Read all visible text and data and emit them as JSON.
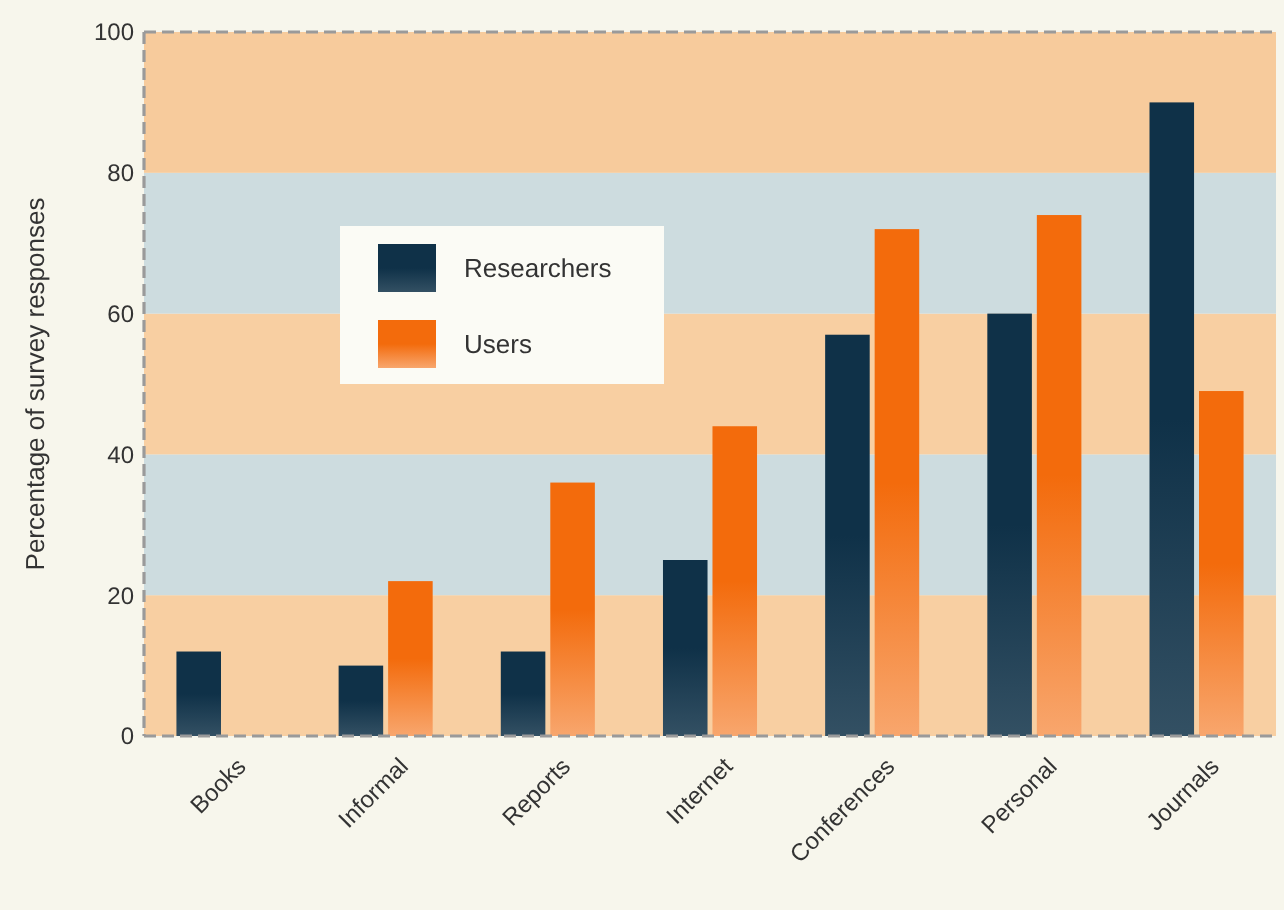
{
  "chart_data": {
    "type": "bar",
    "ylabel": "Percentage of survey responses",
    "categories": [
      "Books",
      "Informal",
      "Reports",
      "Internet",
      "Conferences",
      "Personal",
      "Journals"
    ],
    "series": [
      {
        "name": "Researchers",
        "color": "#0f3148",
        "values": [
          12,
          10,
          12,
          25,
          57,
          60,
          90
        ]
      },
      {
        "name": "Users",
        "color": "#f36b0c",
        "values": [
          null,
          22,
          36,
          44,
          72,
          74,
          49
        ]
      }
    ],
    "ylim": [
      0,
      100
    ],
    "yticks": [
      0,
      20,
      40,
      60,
      80,
      100
    ],
    "bands": [
      {
        "axis": "y",
        "from": 0,
        "to": 20,
        "color": "#f8cfa2"
      },
      {
        "axis": "y",
        "from": 20,
        "to": 40,
        "color": "#cddcdf"
      },
      {
        "axis": "y",
        "from": 40,
        "to": 60,
        "color": "#f8cfa2"
      },
      {
        "axis": "y",
        "from": 60,
        "to": 80,
        "color": "#cddcdf"
      },
      {
        "axis": "y",
        "from": 80,
        "to": 100,
        "color": "#f7cb9c"
      }
    ],
    "legend": "top left"
  }
}
